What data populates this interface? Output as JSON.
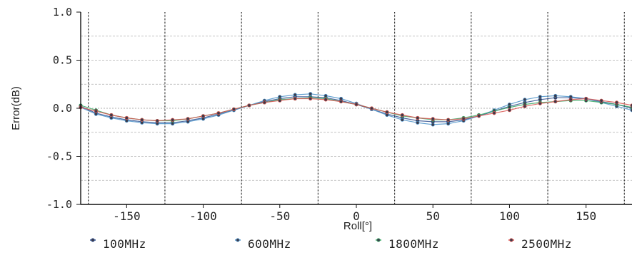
{
  "chart_data": {
    "type": "line",
    "xlabel": "Roll[°]",
    "ylabel": "Error(dB)",
    "xlim": [
      -180,
      180
    ],
    "ylim": [
      -1.0,
      1.0
    ],
    "x_ticks": [
      -150,
      -100,
      -50,
      0,
      50,
      100,
      150
    ],
    "x_tick_labels": [
      "-150",
      "-100",
      "-50",
      "0",
      "50",
      "100",
      "150"
    ],
    "y_ticks": [
      1.0,
      0.5,
      0.0,
      -0.5,
      -1.0
    ],
    "y_tick_labels": [
      "1.0",
      "0.5",
      "0.0",
      "-0.5",
      "-1.0"
    ],
    "grid": true,
    "legend_position": "bottom",
    "x": [
      -180,
      -170,
      -160,
      -150,
      -140,
      -130,
      -120,
      -110,
      -100,
      -90,
      -80,
      -70,
      -60,
      -50,
      -40,
      -30,
      -20,
      -10,
      0,
      10,
      20,
      30,
      40,
      50,
      60,
      70,
      80,
      90,
      100,
      110,
      120,
      130,
      140,
      150,
      160,
      170,
      180
    ],
    "series": [
      {
        "name": "100MHz",
        "color": "#2f4f8f",
        "values": [
          0.02,
          -0.05,
          -0.09,
          -0.12,
          -0.14,
          -0.15,
          -0.15,
          -0.13,
          -0.1,
          -0.06,
          -0.02,
          0.03,
          0.07,
          0.1,
          0.12,
          0.12,
          0.11,
          0.08,
          0.04,
          -0.01,
          -0.06,
          -0.1,
          -0.13,
          -0.14,
          -0.14,
          -0.12,
          -0.08,
          -0.03,
          0.02,
          0.06,
          0.09,
          0.11,
          0.11,
          0.1,
          0.07,
          0.04,
          0.0
        ]
      },
      {
        "name": "600MHz",
        "color": "#4a90c8",
        "values": [
          0.01,
          -0.06,
          -0.1,
          -0.13,
          -0.15,
          -0.16,
          -0.16,
          -0.14,
          -0.11,
          -0.07,
          -0.02,
          0.03,
          0.08,
          0.12,
          0.14,
          0.15,
          0.13,
          0.1,
          0.05,
          -0.01,
          -0.07,
          -0.12,
          -0.15,
          -0.17,
          -0.16,
          -0.13,
          -0.08,
          -0.02,
          0.04,
          0.09,
          0.12,
          0.13,
          0.12,
          0.1,
          0.06,
          0.02,
          -0.02
        ]
      },
      {
        "name": "1800MHz",
        "color": "#3aa866",
        "values": [
          0.03,
          -0.02,
          -0.07,
          -0.1,
          -0.12,
          -0.13,
          -0.13,
          -0.11,
          -0.08,
          -0.05,
          -0.01,
          0.03,
          0.06,
          0.09,
          0.1,
          0.11,
          0.1,
          0.07,
          0.04,
          0.0,
          -0.04,
          -0.08,
          -0.1,
          -0.12,
          -0.12,
          -0.1,
          -0.07,
          -0.03,
          0.01,
          0.04,
          0.06,
          0.07,
          0.08,
          0.08,
          0.06,
          0.04,
          0.01
        ]
      },
      {
        "name": "2500MHz",
        "color": "#d9534f",
        "values": [
          0.01,
          -0.03,
          -0.07,
          -0.1,
          -0.12,
          -0.13,
          -0.12,
          -0.11,
          -0.08,
          -0.05,
          -0.01,
          0.03,
          0.06,
          0.08,
          0.1,
          0.1,
          0.09,
          0.07,
          0.04,
          0.0,
          -0.04,
          -0.07,
          -0.1,
          -0.11,
          -0.12,
          -0.11,
          -0.08,
          -0.05,
          -0.02,
          0.02,
          0.05,
          0.07,
          0.09,
          0.1,
          0.08,
          0.06,
          0.03
        ]
      }
    ]
  }
}
